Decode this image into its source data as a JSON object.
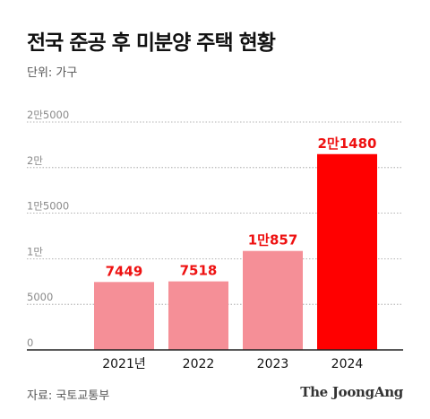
{
  "title": "전국 준공 후 미분양 주택 현황",
  "unit_label": "단위: 가구",
  "source": "자료: 국토교통부",
  "brand": "The JoongAng",
  "colors": {
    "bar_normal": "#f58f97",
    "bar_highlight": "#ff0000",
    "label_color": "#ee1111",
    "grid": "#9a9a9a",
    "tick_text": "#8a8a8a"
  },
  "chart_data": {
    "type": "bar",
    "categories": [
      "2021년",
      "2022",
      "2023",
      "2024"
    ],
    "values": [
      7449,
      7518,
      10857,
      21480
    ],
    "data_labels": [
      "7449",
      "7518",
      "1만857",
      "2만1480"
    ],
    "highlight_index": 3,
    "ylim": [
      0,
      25000
    ],
    "yticks": [
      0,
      5000,
      10000,
      15000,
      20000,
      25000
    ],
    "ytick_labels": [
      "0",
      "5000",
      "1만",
      "1만5000",
      "2만",
      "2만5000"
    ],
    "grid": true
  }
}
